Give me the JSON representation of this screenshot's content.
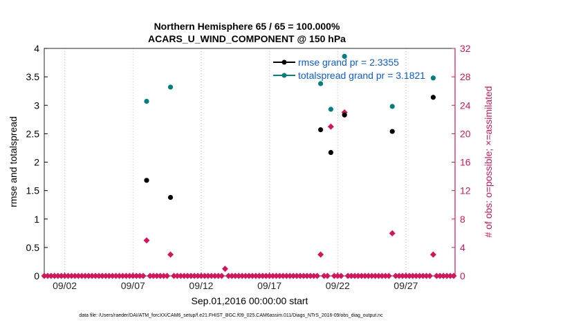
{
  "chart_data": {
    "type": "scatter",
    "title": "Northern Hemisphere 65 / 65 = 100.000%",
    "subtitle": "ACARS_U_WIND_COMPONENT @ 150 hPa",
    "xlabel": "Sep.01,2016 00:00:00 start",
    "ylabel_left": "rmse and totalspread",
    "ylabel_right": "# of obs: o=possible; ×=assimilated",
    "xlim": [
      0.5,
      30.6
    ],
    "ylim_left": [
      0,
      4
    ],
    "ylim_right": [
      0,
      32
    ],
    "x_ticks": [
      {
        "x": 2,
        "label": "09/02"
      },
      {
        "x": 7,
        "label": "09/07"
      },
      {
        "x": 12,
        "label": "09/12"
      },
      {
        "x": 17,
        "label": "09/17"
      },
      {
        "x": 22,
        "label": "09/22"
      },
      {
        "x": 27,
        "label": "09/27"
      }
    ],
    "y_ticks_left": [
      "0",
      "0.5",
      "1",
      "1.5",
      "2",
      "2.5",
      "3",
      "3.5",
      "4"
    ],
    "y_ticks_right": [
      "0",
      "4",
      "8",
      "12",
      "16",
      "20",
      "24",
      "28",
      "32"
    ],
    "legend": [
      {
        "label": "rmse grand pr = 2.3355",
        "color": "#000000"
      },
      {
        "label": "totalspread grand pr = 3.1821",
        "color": "#008080"
      }
    ],
    "series": [
      {
        "name": "rmse",
        "axis": "left",
        "color": "#000000",
        "points": [
          {
            "x": 8.0,
            "y": 1.68
          },
          {
            "x": 9.75,
            "y": 1.38
          },
          {
            "x": 20.75,
            "y": 2.57
          },
          {
            "x": 21.5,
            "y": 2.17
          },
          {
            "x": 22.5,
            "y": 2.83
          },
          {
            "x": 26.0,
            "y": 2.54
          },
          {
            "x": 29.0,
            "y": 3.14
          }
        ]
      },
      {
        "name": "totalspread",
        "axis": "left",
        "color": "#008080",
        "points": [
          {
            "x": 8.0,
            "y": 3.07
          },
          {
            "x": 9.75,
            "y": 3.32
          },
          {
            "x": 20.75,
            "y": 3.38
          },
          {
            "x": 21.5,
            "y": 2.93
          },
          {
            "x": 22.5,
            "y": 3.86
          },
          {
            "x": 26.0,
            "y": 2.98
          },
          {
            "x": 29.0,
            "y": 3.48
          }
        ]
      },
      {
        "name": "obs",
        "axis": "right",
        "color": "#d6145b",
        "x_start": 0.5,
        "x_step": 0.25,
        "count": 121,
        "nonzero": [
          {
            "x": 8.0,
            "y": 5
          },
          {
            "x": 9.75,
            "y": 3
          },
          {
            "x": 13.75,
            "y": 1
          },
          {
            "x": 20.75,
            "y": 3
          },
          {
            "x": 21.5,
            "y": 21
          },
          {
            "x": 22.5,
            "y": 23
          },
          {
            "x": 26.0,
            "y": 6
          },
          {
            "x": 29.0,
            "y": 3
          }
        ]
      }
    ],
    "grid": "vertical dotted at x ticks",
    "legend_position": "top-right"
  },
  "colors": {
    "left_axis": "#000000",
    "right_axis": "#d6145b",
    "legend_text": "#0a5ce6",
    "rmse": "#000000",
    "spread": "#008080",
    "obs": "#d6145b"
  },
  "footer": "data file: /Users/raeder/DAI/ATM_forcXX/CAM6_setup/f.e21.FHIST_BGC.f09_025.CAM6assim.011/Diags_NTrS_2016-09/obs_diag_output.nc"
}
